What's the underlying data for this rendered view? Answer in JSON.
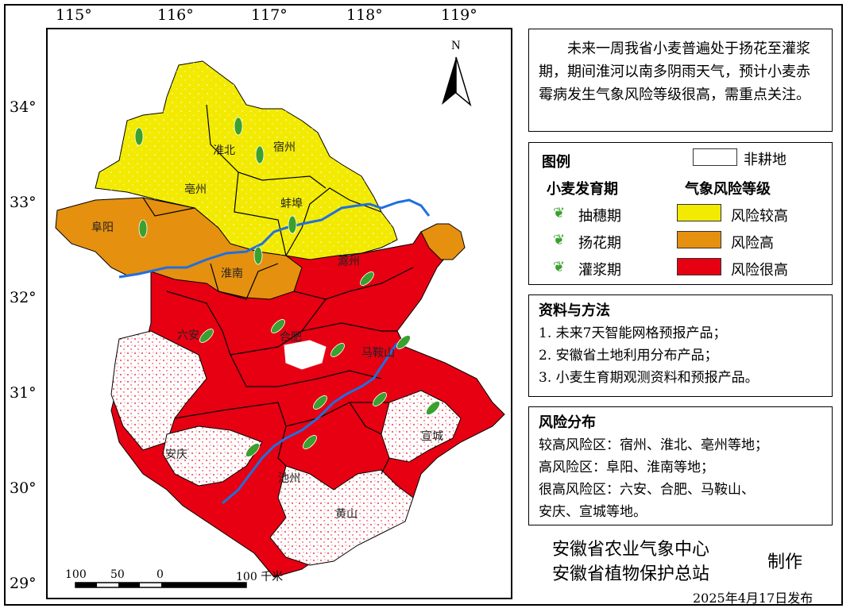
{
  "map": {
    "longitude_labels": [
      "115°",
      "116°",
      "117°",
      "118°",
      "119°"
    ],
    "latitude_labels": [
      "34°",
      "33°",
      "32°",
      "31°",
      "30°",
      "29°"
    ],
    "north_label": "N",
    "city_labels": [
      "淮北",
      "宿州",
      "亳州",
      "蚌埠",
      "阜阳",
      "淮南",
      "滁州",
      "六安",
      "合肥",
      "马鞍山",
      "安庆",
      "池州",
      "宣城",
      "黄山"
    ],
    "scale_labels": [
      "100",
      "50",
      "0",
      "100 千米"
    ],
    "colors": {
      "risk_high_ish": "#f2ea00",
      "risk_high": "#e5900f",
      "risk_very_high": "#e60012",
      "non_farm": "#ffffff",
      "river": "#1f6fe0",
      "wheat_icon": "#3aa02e"
    }
  },
  "summary": {
    "text": "未来一周我省小麦普遍处于扬花至灌浆期，期间淮河以南多阴雨天气，预计小麦赤霉病发生气象风险等级很高，需重点关注。"
  },
  "legend": {
    "title": "图例",
    "non_farm": "非耕地",
    "stage_title": "小麦发育期",
    "stages": [
      "抽穗期",
      "扬花期",
      "灌浆期"
    ],
    "risk_title": "气象风险等级",
    "risks": [
      "风险较高",
      "风险高",
      "风险很高"
    ]
  },
  "methods": {
    "title": "资料与方法",
    "items": [
      "1. 未来7天智能网格预报产品；",
      "2. 安徽省土地利用分布产品；",
      "3. 小麦生育期观测资料和预报产品。"
    ]
  },
  "distribution": {
    "title": "风险分布",
    "lines": [
      "较高风险区：宿州、淮北、亳州等地；",
      "高风险区：阜阳、淮南等地；",
      "很高风险区：六安、合肥、马鞍山、",
      "安庆、宣城等地。"
    ]
  },
  "footer": {
    "org1": "安徽省农业气象中心",
    "org2": "安徽省植物保护总站",
    "made": "制作",
    "date": "2025年4月17日发布"
  }
}
